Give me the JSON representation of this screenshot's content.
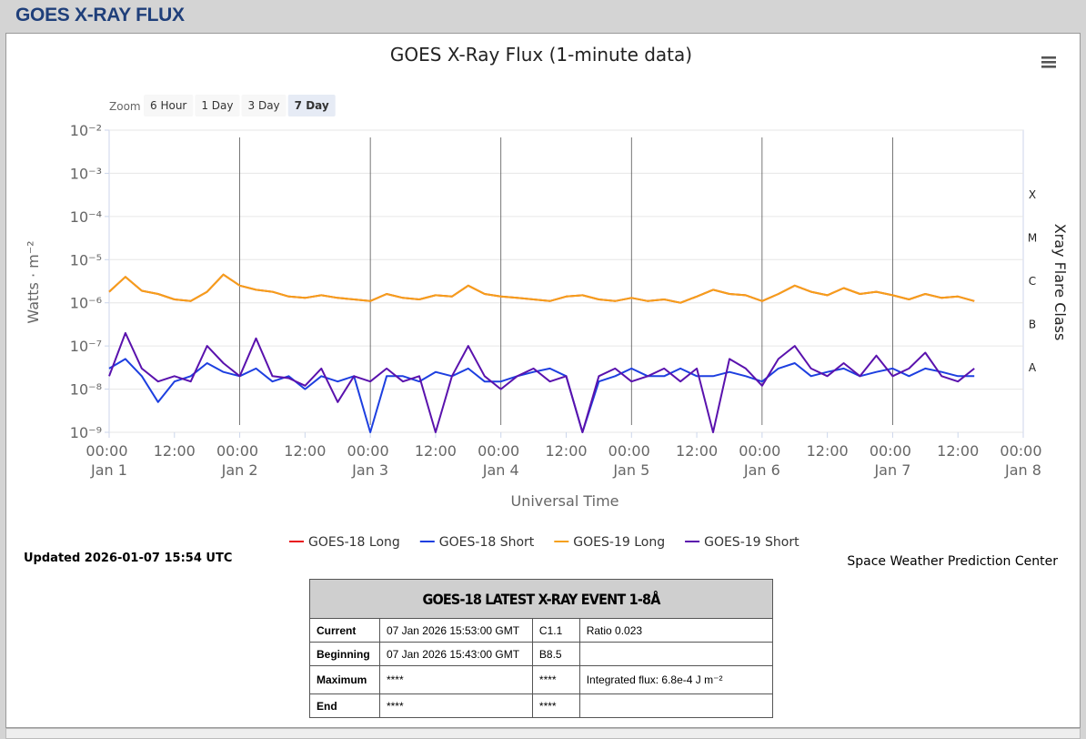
{
  "header": {
    "title": "GOES X-RAY FLUX"
  },
  "zoom": {
    "label": "Zoom",
    "buttons": [
      "6 Hour",
      "1 Day",
      "3 Day",
      "7 Day"
    ],
    "selected": 3
  },
  "chart_data": {
    "type": "line",
    "title": "GOES X-Ray Flux (1-minute data)",
    "x_label": "Universal Time",
    "y_label": "Watts · m⁻²",
    "y2_label": "Xray Flare Class",
    "log_y": true,
    "grid": true,
    "ylim": [
      1e-09,
      0.01
    ],
    "yticks": [
      {
        "value": 1e-09,
        "label": "10⁻⁹"
      },
      {
        "value": 1e-08,
        "label": "10⁻⁸"
      },
      {
        "value": 1e-07,
        "label": "10⁻⁷"
      },
      {
        "value": 1e-06,
        "label": "10⁻⁶"
      },
      {
        "value": 1e-05,
        "label": "10⁻⁵"
      },
      {
        "value": 0.0001,
        "label": "10⁻⁴"
      },
      {
        "value": 0.001,
        "label": "10⁻³"
      },
      {
        "value": 0.01,
        "label": "10⁻²"
      }
    ],
    "flare_classes": [
      {
        "value": 0.0001,
        "label": "X"
      },
      {
        "value": 1e-05,
        "label": "M"
      },
      {
        "value": 1e-06,
        "label": "C"
      },
      {
        "value": 1e-07,
        "label": "B"
      },
      {
        "value": 1e-08,
        "label": "A"
      }
    ],
    "xlim": [
      "Jan 1 00:00",
      "Jan 8 00:00"
    ],
    "xticks": [
      {
        "value": "Jan 1 00:00",
        "label": "00:00 Jan 1"
      },
      {
        "value": "Jan 1 12:00",
        "label": "12:00"
      },
      {
        "value": "Jan 2 00:00",
        "label": "00:00 Jan 2"
      },
      {
        "value": "Jan 2 12:00",
        "label": "12:00"
      },
      {
        "value": "Jan 3 00:00",
        "label": "00:00 Jan 3"
      },
      {
        "value": "Jan 3 12:00",
        "label": "12:00"
      },
      {
        "value": "Jan 4 00:00",
        "label": "00:00 Jan 4"
      },
      {
        "value": "Jan 4 12:00",
        "label": "12:00"
      },
      {
        "value": "Jan 5 00:00",
        "label": "00:00 Jan 5"
      },
      {
        "value": "Jan 5 12:00",
        "label": "12:00"
      },
      {
        "value": "Jan 6 00:00",
        "label": "00:00 Jan 6"
      },
      {
        "value": "Jan 6 12:00",
        "label": "12:00"
      },
      {
        "value": "Jan 7 00:00",
        "label": "00:00 Jan 7"
      },
      {
        "value": "Jan 7 12:00",
        "label": "12:00"
      },
      {
        "value": "Jan 8 00:00",
        "label": "00:00 Jan 8"
      }
    ],
    "x": [
      "Jan 1 00:00",
      "Jan 1 03:00",
      "Jan 1 06:00",
      "Jan 1 09:00",
      "Jan 1 12:00",
      "Jan 1 15:00",
      "Jan 1 18:00",
      "Jan 1 21:00",
      "Jan 2 00:00",
      "Jan 2 03:00",
      "Jan 2 06:00",
      "Jan 2 09:00",
      "Jan 2 12:00",
      "Jan 2 15:00",
      "Jan 2 18:00",
      "Jan 2 21:00",
      "Jan 3 00:00",
      "Jan 3 03:00",
      "Jan 3 06:00",
      "Jan 3 09:00",
      "Jan 3 12:00",
      "Jan 3 15:00",
      "Jan 3 18:00",
      "Jan 3 21:00",
      "Jan 4 00:00",
      "Jan 4 03:00",
      "Jan 4 06:00",
      "Jan 4 09:00",
      "Jan 4 12:00",
      "Jan 4 15:00",
      "Jan 4 18:00",
      "Jan 4 21:00",
      "Jan 5 00:00",
      "Jan 5 03:00",
      "Jan 5 06:00",
      "Jan 5 09:00",
      "Jan 5 12:00",
      "Jan 5 15:00",
      "Jan 5 18:00",
      "Jan 5 21:00",
      "Jan 6 00:00",
      "Jan 6 03:00",
      "Jan 6 06:00",
      "Jan 6 09:00",
      "Jan 6 12:00",
      "Jan 6 15:00",
      "Jan 6 18:00",
      "Jan 6 21:00",
      "Jan 7 00:00",
      "Jan 7 03:00",
      "Jan 7 06:00",
      "Jan 7 09:00",
      "Jan 7 12:00",
      "Jan 7 15:00"
    ],
    "series": [
      {
        "name": "GOES-18 Long",
        "color": "#e8141c",
        "values": [
          1.8e-06,
          4e-06,
          1.9e-06,
          1.6e-06,
          1.2e-06,
          1.1e-06,
          1.8e-06,
          4.5e-06,
          2.5e-06,
          2e-06,
          1.8e-06,
          1.4e-06,
          1.3e-06,
          1.5e-06,
          1.3e-06,
          1.2e-06,
          1.1e-06,
          1.6e-06,
          1.3e-06,
          1.2e-06,
          1.5e-06,
          1.4e-06,
          2.5e-06,
          1.6e-06,
          1.4e-06,
          1.3e-06,
          1.2e-06,
          1.1e-06,
          1.4e-06,
          1.5e-06,
          1.2e-06,
          1.1e-06,
          1.3e-06,
          1.1e-06,
          1.2e-06,
          1e-06,
          1.4e-06,
          2e-06,
          1.6e-06,
          1.5e-06,
          1.1e-06,
          1.6e-06,
          2.5e-06,
          1.8e-06,
          1.5e-06,
          2.2e-06,
          1.6e-06,
          1.8e-06,
          1.5e-06,
          1.2e-06,
          1.6e-06,
          1.3e-06,
          1.4e-06,
          1.1e-06
        ]
      },
      {
        "name": "GOES-18 Short",
        "color": "#1d3fe0",
        "values": [
          3e-08,
          5e-08,
          2e-08,
          5e-09,
          1.5e-08,
          2e-08,
          4e-08,
          2.5e-08,
          2e-08,
          3e-08,
          1.5e-08,
          2e-08,
          1e-08,
          2e-08,
          1.5e-08,
          2e-08,
          1e-09,
          2e-08,
          2e-08,
          1.5e-08,
          2.5e-08,
          2e-08,
          3e-08,
          1.5e-08,
          1.5e-08,
          2e-08,
          2.5e-08,
          3e-08,
          2e-08,
          1e-09,
          1.5e-08,
          2e-08,
          3e-08,
          2e-08,
          2e-08,
          3e-08,
          2e-08,
          2e-08,
          2.5e-08,
          2e-08,
          1.5e-08,
          3e-08,
          4e-08,
          2e-08,
          2.5e-08,
          3e-08,
          2e-08,
          2.5e-08,
          3e-08,
          2e-08,
          3e-08,
          2.5e-08,
          2e-08,
          2e-08
        ]
      },
      {
        "name": "GOES-19 Long",
        "color": "#f5a01a",
        "values": [
          1.8e-06,
          4e-06,
          1.9e-06,
          1.6e-06,
          1.2e-06,
          1.1e-06,
          1.8e-06,
          4.5e-06,
          2.5e-06,
          2e-06,
          1.8e-06,
          1.4e-06,
          1.3e-06,
          1.5e-06,
          1.3e-06,
          1.2e-06,
          1.1e-06,
          1.6e-06,
          1.3e-06,
          1.2e-06,
          1.5e-06,
          1.4e-06,
          2.5e-06,
          1.6e-06,
          1.4e-06,
          1.3e-06,
          1.2e-06,
          1.1e-06,
          1.4e-06,
          1.5e-06,
          1.2e-06,
          1.1e-06,
          1.3e-06,
          1.1e-06,
          1.2e-06,
          1e-06,
          1.4e-06,
          2e-06,
          1.6e-06,
          1.5e-06,
          1.1e-06,
          1.6e-06,
          2.5e-06,
          1.8e-06,
          1.5e-06,
          2.2e-06,
          1.6e-06,
          1.8e-06,
          1.5e-06,
          1.2e-06,
          1.6e-06,
          1.3e-06,
          1.4e-06,
          1.1e-06
        ]
      },
      {
        "name": "GOES-19 Short",
        "color": "#5a12ad",
        "values": [
          2e-08,
          2e-07,
          3e-08,
          1.5e-08,
          2e-08,
          1.5e-08,
          1e-07,
          4e-08,
          2e-08,
          1.5e-07,
          2e-08,
          1.8e-08,
          1.2e-08,
          3e-08,
          5e-09,
          2e-08,
          1.5e-08,
          3e-08,
          1.5e-08,
          2e-08,
          1e-09,
          2e-08,
          1e-07,
          2e-08,
          1e-08,
          2e-08,
          3e-08,
          1.5e-08,
          2e-08,
          1e-09,
          2e-08,
          3e-08,
          1.5e-08,
          2e-08,
          3e-08,
          1.5e-08,
          3e-08,
          1e-09,
          5e-08,
          3e-08,
          1.2e-08,
          5e-08,
          1e-07,
          3e-08,
          2e-08,
          4e-08,
          2e-08,
          6e-08,
          2e-08,
          3e-08,
          7e-08,
          2e-08,
          1.5e-08,
          3e-08
        ]
      }
    ]
  },
  "updated": "Updated 2026-01-07 15:54 UTC",
  "credit": "Space Weather Prediction Center",
  "table": {
    "title": "GOES-18 LATEST X-RAY EVENT 1-8Å",
    "rows": [
      [
        "Current",
        "07 Jan 2026 15:53:00 GMT",
        "C1.1",
        "Ratio 0.023"
      ],
      [
        "Beginning",
        "07 Jan 2026 15:43:00 GMT",
        "B8.5"
      ],
      [
        "Maximum",
        "****",
        "****",
        "Integrated flux: 6.8e-4 J m⁻²"
      ],
      [
        "End",
        "****",
        "****"
      ]
    ]
  }
}
